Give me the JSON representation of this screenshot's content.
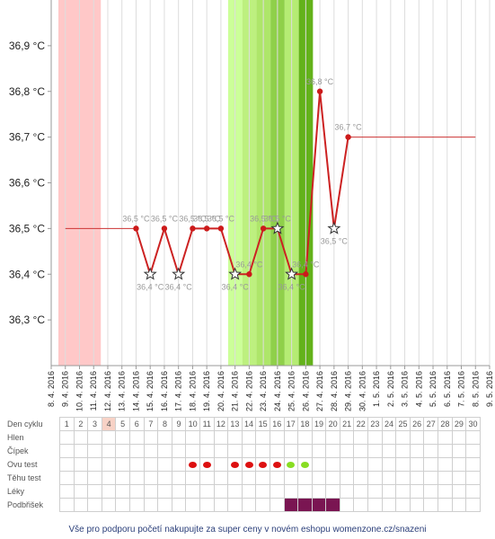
{
  "chart_data": {
    "type": "line",
    "title": "",
    "xlabel": "",
    "ylabel": "",
    "ylim": [
      36.2,
      37.0
    ],
    "y_ticks": [
      "36,3 °C",
      "36,4 °C",
      "36,5 °C",
      "36,6 °C",
      "36,7 °C",
      "36,8 °C",
      "36,9 °C"
    ],
    "x_ticks": [
      "8. 4. 2016",
      "9. 4. 2016",
      "10. 4. 2016",
      "11. 4. 2016",
      "12. 4. 2016",
      "13. 4. 2016",
      "14. 4. 2016",
      "15. 4. 2016",
      "16. 4. 2016",
      "17. 4. 2016",
      "18. 4. 2016",
      "19. 4. 2016",
      "20. 4. 2016",
      "21. 4. 2016",
      "22. 4. 2016",
      "23. 4. 2016",
      "24. 4. 2016",
      "25. 4. 2016",
      "26. 4. 2016",
      "27. 4. 2016",
      "28. 4. 2016",
      "29. 4. 2016",
      "30. 4. 2016",
      "1. 5. 2016",
      "2. 5. 2016",
      "3. 5. 2016",
      "4. 5. 2016",
      "5. 5. 2016",
      "6. 5. 2016",
      "7. 5. 2016",
      "8. 5. 2016",
      "9. 5. 2016"
    ],
    "baseline_low": 36.5,
    "baseline_high": 36.7,
    "grid": true,
    "series": [
      {
        "color": "#cc2222",
        "points": [
          {
            "x": "14. 4. 2016",
            "y": 36.5,
            "label": "36,5 °C",
            "marker": "dot"
          },
          {
            "x": "15. 4. 2016",
            "y": 36.4,
            "label": "36,4 °C",
            "marker": "star"
          },
          {
            "x": "16. 4. 2016",
            "y": 36.5,
            "label": "36,5 °C",
            "marker": "dot"
          },
          {
            "x": "17. 4. 2016",
            "y": 36.4,
            "label": "36,4 °C",
            "marker": "star"
          },
          {
            "x": "18. 4. 2016",
            "y": 36.5,
            "label": "36,5 °C",
            "marker": "dot"
          },
          {
            "x": "19. 4. 2016",
            "y": 36.5,
            "label": "36,5 °C",
            "marker": "dot"
          },
          {
            "x": "20. 4. 2016",
            "y": 36.5,
            "label": "36,5 °C",
            "marker": "dot"
          },
          {
            "x": "21. 4. 2016",
            "y": 36.4,
            "label": "36,4 °C",
            "marker": "star"
          },
          {
            "x": "22. 4. 2016",
            "y": 36.4,
            "label": "36,4 °C",
            "marker": "dot"
          },
          {
            "x": "23. 4. 2016",
            "y": 36.5,
            "label": "36,5 °C",
            "marker": "dot"
          },
          {
            "x": "24. 4. 2016",
            "y": 36.5,
            "label": "36,5 °C",
            "marker": "star"
          },
          {
            "x": "25. 4. 2016",
            "y": 36.4,
            "label": "36,4 °C",
            "marker": "star"
          },
          {
            "x": "26. 4. 2016",
            "y": 36.4,
            "label": "36,4 °C",
            "marker": "dot"
          },
          {
            "x": "27. 4. 2016",
            "y": 36.8,
            "label": "36,8 °C",
            "marker": "dot"
          },
          {
            "x": "28. 4. 2016",
            "y": 36.5,
            "label": "36,5 °C",
            "marker": "star"
          },
          {
            "x": "29. 4. 2016",
            "y": 36.7,
            "label": "36,7 °C",
            "marker": "dot"
          }
        ]
      }
    ],
    "bands": [
      {
        "from": "8. 4. 2016",
        "to": "11. 4. 2016",
        "color": "#ffc8c8"
      },
      {
        "from": "20. 4. 2016",
        "to": "21. 4. 2016",
        "color": "#ccff99"
      },
      {
        "from": "21. 4. 2016",
        "to": "22. 4. 2016",
        "color": "#bdf07f"
      },
      {
        "from": "22. 4. 2016",
        "to": "23. 4. 2016",
        "color": "#aee66a"
      },
      {
        "from": "23. 4. 2016",
        "to": "24. 4. 2016",
        "color": "#8fd04a"
      },
      {
        "from": "24. 4. 2016",
        "to": "25. 4. 2016",
        "color": "#b5ec74"
      },
      {
        "from": "25. 4. 2016",
        "to": "26. 4. 2016",
        "color": "#63b21a"
      }
    ]
  },
  "cycle_table": {
    "rows": [
      {
        "label": "Den cyklu"
      },
      {
        "label": "Hlen"
      },
      {
        "label": "Čípek"
      },
      {
        "label": "Ovu test"
      },
      {
        "label": "Těhu test"
      },
      {
        "label": "Léky"
      },
      {
        "label": "Podbřišek"
      }
    ],
    "days": [
      "1",
      "2",
      "3",
      "4",
      "5",
      "6",
      "7",
      "8",
      "9",
      "10",
      "11",
      "12",
      "13",
      "14",
      "15",
      "16",
      "17",
      "18",
      "19",
      "20",
      "21",
      "22",
      "23",
      "24",
      "25",
      "26",
      "27",
      "28",
      "29",
      "30"
    ],
    "today_day": "4",
    "ovu_positive_days": [
      "10",
      "11",
      "13",
      "14",
      "15",
      "16"
    ],
    "ovu_light_days": [
      "17",
      "18"
    ],
    "podbrisek_days": [
      "17",
      "18",
      "19",
      "20"
    ]
  },
  "footer": {
    "text": "Vše pro podporu početí nakupujte za super ceny v novém eshopu womenzone.cz/snazeni"
  }
}
